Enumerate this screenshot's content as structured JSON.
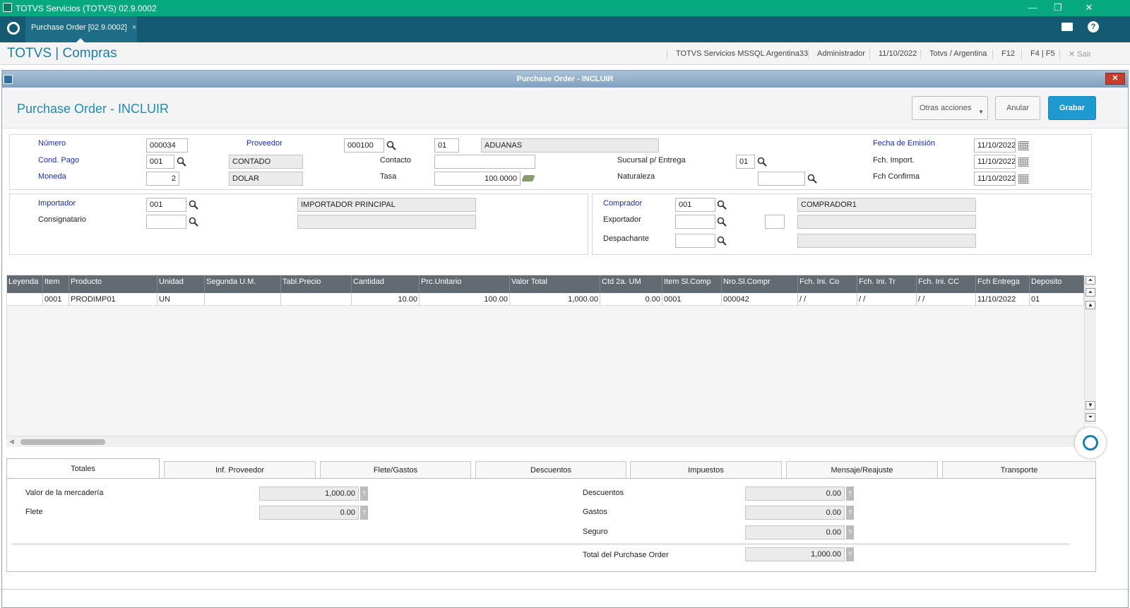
{
  "window": {
    "title": "TOTVS Servicios (TOTVS) 02.9.0002"
  },
  "tabbar": {
    "tab_label": "Purchase Order [02.9.0002]",
    "tab_close": "×"
  },
  "appbar": {
    "brand": "TOTVS | Compras",
    "server": "TOTVS Servicios MSSQL Argentina33",
    "user": "Administrador",
    "date": "11/10/2022",
    "env": "Totvs / Argentina",
    "f12": "F12",
    "f4f5": "F4 | F5",
    "exit": "Sair"
  },
  "dialog": {
    "title": "Purchase Order - INCLUIR",
    "page_title": "Purchase Order - INCLUIR",
    "close": "✕",
    "buttons": {
      "otras": "Otras acciones",
      "anular": "Anular",
      "grabar": "Grabar"
    }
  },
  "header": {
    "numero_label": "Número",
    "numero": "000034",
    "proveedor_label": "Proveedor",
    "proveedor_code": "000100",
    "proveedor_tienda": "01",
    "proveedor_name": "ADUANAS",
    "fecha_emision_label": "Fecha de Emisión",
    "fecha_emision": "11/10/2022",
    "cond_pago_label": "Cond. Pago",
    "cond_pago": "001",
    "cond_pago_desc": "CONTADO",
    "contacto_label": "Contacto",
    "contacto": "",
    "sucursal_label": "Sucursal p/ Entrega",
    "sucursal": "01",
    "fch_import_label": "Fch. Import.",
    "fch_import": "11/10/2022",
    "moneda_label": "Moneda",
    "moneda": "2",
    "moneda_desc": "DOLAR",
    "tasa_label": "Tasa",
    "tasa": "100.0000",
    "naturaleza_label": "Naturaleza",
    "naturaleza": "",
    "fch_confirma_label": "Fch Confirma",
    "fch_confirma": "11/10/2022"
  },
  "parties": {
    "importador_label": "Importador",
    "importador": "001",
    "importador_desc": "IMPORTADOR PRINCIPAL",
    "consignatario_label": "Consignatario",
    "consignatario": "",
    "consignatario_desc": "",
    "comprador_label": "Comprador",
    "comprador": "001",
    "comprador_desc": "COMPRADOR1",
    "exportador_label": "Exportador",
    "exportador": "",
    "exportador_extra": "",
    "exportador_desc": "",
    "despachante_label": "Despachante",
    "despachante": "",
    "despachante_desc": ""
  },
  "grid": {
    "columns": [
      "Leyenda",
      "Item",
      "Producto",
      "Unidad",
      "Segunda U.M.",
      "Tabl.Precio",
      "Cantidad",
      "Prc.Unitario",
      "Valor Total",
      "Ctd 2a. UM",
      "Item Sl.Comp",
      "Nro.Sl.Compr",
      "Fch. Ini. Co",
      "Fch. Ini. Tr",
      "Fch. Ini. CC",
      "Fch Entrega",
      "Deposito"
    ],
    "rows": [
      [
        "",
        "0001",
        "PRODIMP01",
        "UN",
        "",
        "",
        "10.00",
        "100.00",
        "1,000.00",
        "0.00",
        "0001",
        "000042",
        " /  /",
        " /  /",
        " /  /",
        "11/10/2022",
        "01"
      ]
    ]
  },
  "tabs": [
    "Totales",
    "Inf. Proveedor",
    "Flete/Gastos",
    "Descuentos",
    "Impuestos",
    "Mensaje/Reajuste",
    "Transporte"
  ],
  "totales": {
    "valor_merc_label": "Valor de la mercadería",
    "valor_merc": "1,000.00",
    "flete_label": "Flete",
    "flete": "0.00",
    "descuentos_label": "Descuentos",
    "descuentos": "0.00",
    "gastos_label": "Gastos",
    "gastos": "0.00",
    "seguro_label": "Seguro",
    "seguro": "0.00",
    "total_label": "Total del Purchase Order",
    "total": "1,000.00",
    "help": "?"
  }
}
